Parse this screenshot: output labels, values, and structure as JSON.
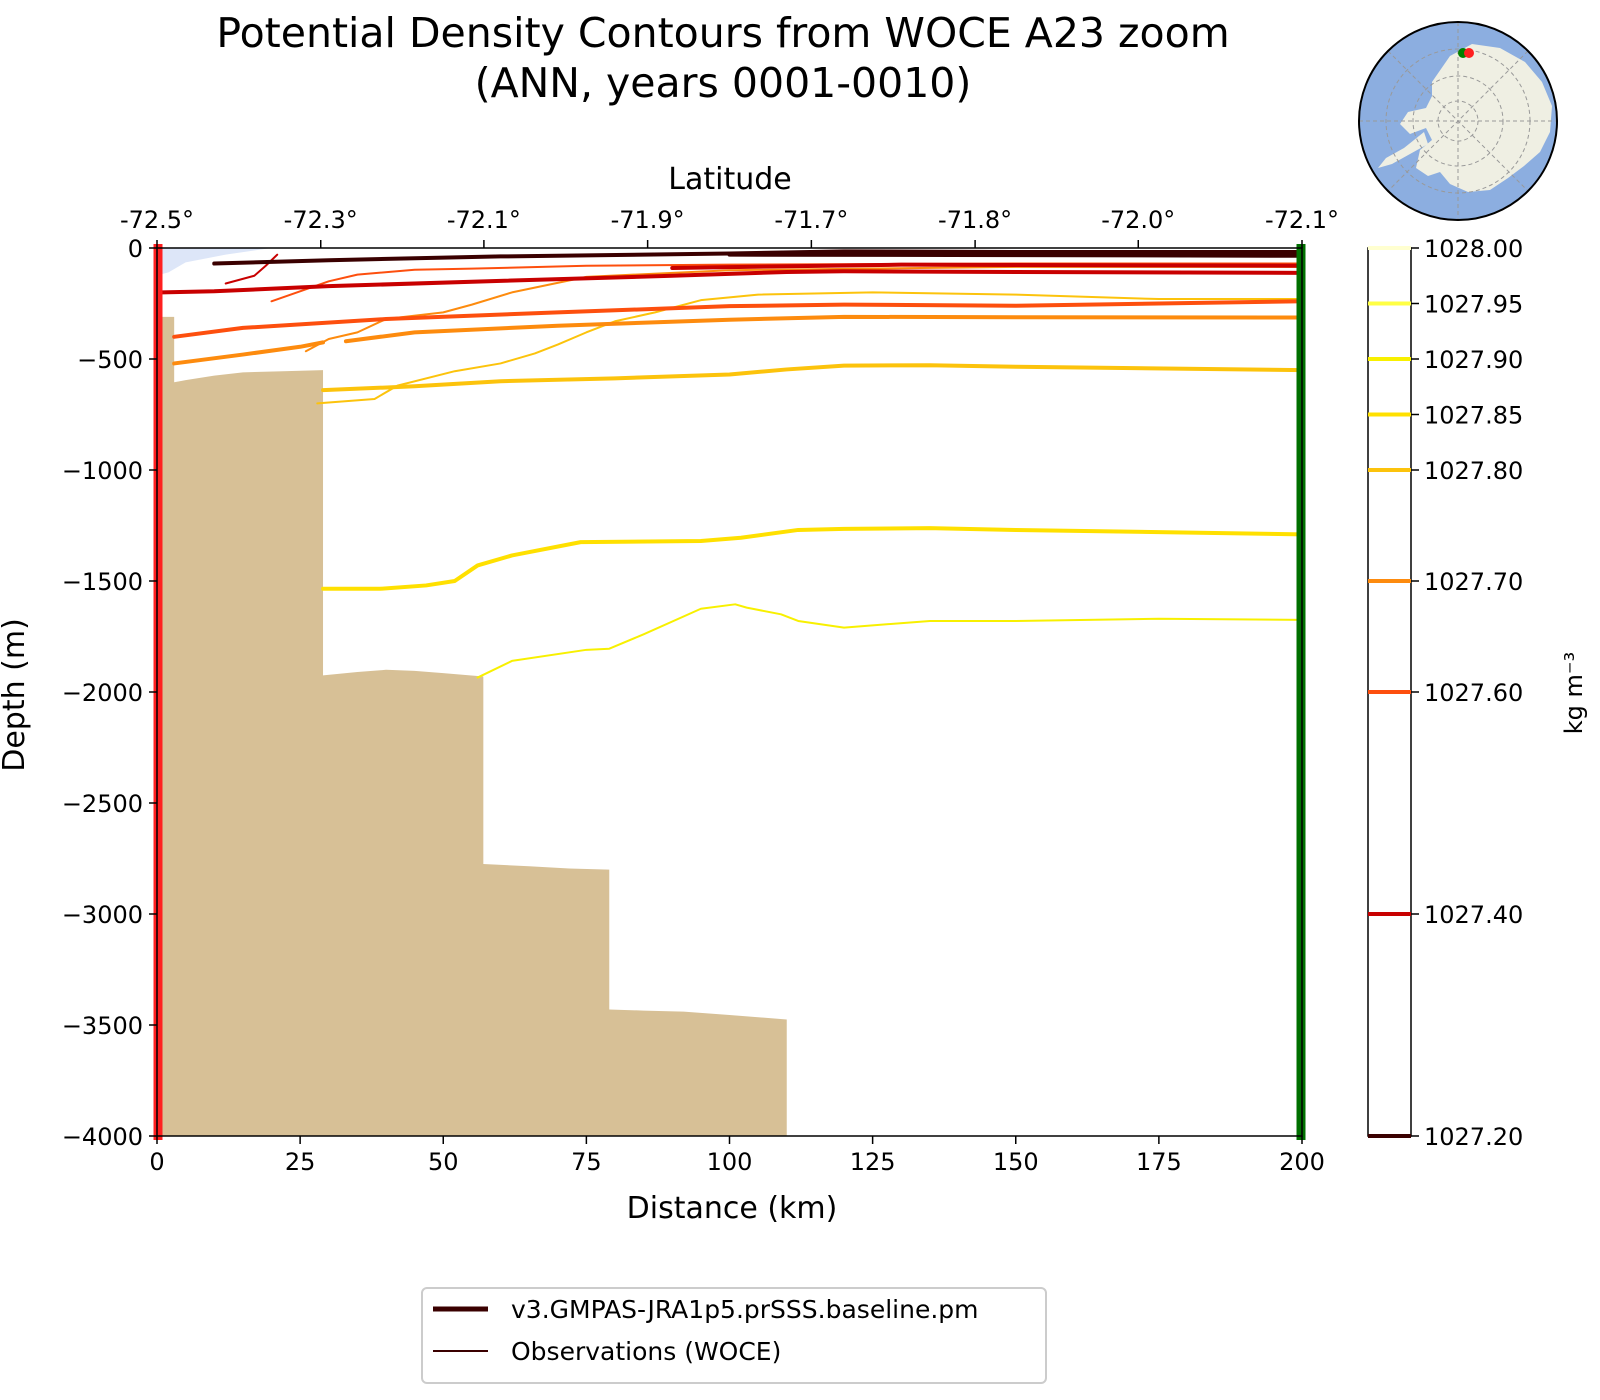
{
  "chart_data": {
    "type": "line",
    "title_line1": "Potential Density Contours from WOCE A23 zoom",
    "title_line2": "(ANN, years 0001-0010)",
    "xlabel": "Distance (km)",
    "ylabel": "Depth (m)",
    "top_xlabel": "Latitude",
    "colorbar_label": "kg m⁻³",
    "xlim": [
      0,
      200
    ],
    "ylim": [
      -4000,
      0
    ],
    "x_ticks": [
      0,
      25,
      50,
      75,
      100,
      125,
      150,
      175,
      200
    ],
    "y_ticks": [
      0,
      -500,
      -1000,
      -1500,
      -2000,
      -2500,
      -3000,
      -3500,
      -4000
    ],
    "y_tick_labels": [
      "0",
      "−500",
      "−1000",
      "−1500",
      "−2000",
      "−2500",
      "−3000",
      "−3500",
      "−4000"
    ],
    "top_ticks": [
      {
        "x": 0,
        "label": "-72.5°"
      },
      {
        "x": 28.6,
        "label": "-72.3°"
      },
      {
        "x": 57.1,
        "label": "-72.1°"
      },
      {
        "x": 85.7,
        "label": "-71.9°"
      },
      {
        "x": 114.3,
        "label": "-71.7°"
      },
      {
        "x": 142.9,
        "label": "-71.8°"
      },
      {
        "x": 171.4,
        "label": "-72.0°"
      },
      {
        "x": 200,
        "label": "-72.1°"
      }
    ],
    "colorbar": {
      "min": 1027.2,
      "max": 1028.0,
      "levels": [
        {
          "value": 1028.0,
          "label": "1028.00",
          "color": "#ffffd0"
        },
        {
          "value": 1027.95,
          "label": "1027.95",
          "color": "#ffff44"
        },
        {
          "value": 1027.9,
          "label": "1027.90",
          "color": "#f8f000"
        },
        {
          "value": 1027.85,
          "label": "1027.85",
          "color": "#ffe000"
        },
        {
          "value": 1027.8,
          "label": "1027.80",
          "color": "#fcc30c"
        },
        {
          "value": 1027.7,
          "label": "1027.70",
          "color": "#fd8b0e"
        },
        {
          "value": 1027.6,
          "label": "1027.60",
          "color": "#fd4f0e"
        },
        {
          "value": 1027.4,
          "label": "1027.40",
          "color": "#c80000"
        },
        {
          "value": 1027.2,
          "label": "1027.20",
          "color": "#3a0000"
        }
      ]
    },
    "bathymetry": [
      [
        0.5,
        -4000
      ],
      [
        0.5,
        -310
      ],
      [
        3,
        -310
      ],
      [
        3,
        -605
      ],
      [
        5,
        -595
      ],
      [
        10,
        -575
      ],
      [
        15,
        -560
      ],
      [
        22,
        -555
      ],
      [
        29,
        -550
      ],
      [
        29,
        -1925
      ],
      [
        35,
        -1910
      ],
      [
        40,
        -1900
      ],
      [
        45,
        -1905
      ],
      [
        50,
        -1915
      ],
      [
        57,
        -1930
      ],
      [
        57,
        -2775
      ],
      [
        65,
        -2785
      ],
      [
        72,
        -2795
      ],
      [
        79,
        -2800
      ],
      [
        79,
        -3430
      ],
      [
        85,
        -3435
      ],
      [
        92,
        -3440
      ],
      [
        100,
        -3455
      ],
      [
        110,
        -3475
      ],
      [
        110,
        -4000
      ]
    ],
    "ice_shelf": [
      [
        0.5,
        0
      ],
      [
        20,
        0
      ],
      [
        12,
        -30
      ],
      [
        5,
        -65
      ],
      [
        2,
        -110
      ],
      [
        0.5,
        -120
      ]
    ],
    "model_series": [
      {
        "level": 1027.2,
        "width": 4,
        "points": [
          [
            10,
            -70
          ],
          [
            30,
            -55
          ],
          [
            60,
            -38
          ],
          [
            100,
            -25
          ],
          [
            120,
            -15
          ],
          [
            150,
            -18
          ],
          [
            200,
            -18
          ]
        ]
      },
      {
        "level": 1027.2,
        "width": 4,
        "points": [
          [
            100,
            -30
          ],
          [
            150,
            -32
          ],
          [
            200,
            -35
          ]
        ]
      },
      {
        "level": 1027.4,
        "width": 4,
        "points": [
          [
            1,
            -200
          ],
          [
            10,
            -195
          ],
          [
            30,
            -172
          ],
          [
            60,
            -148
          ],
          [
            90,
            -125
          ],
          [
            110,
            -108
          ],
          [
            120,
            -105
          ],
          [
            150,
            -108
          ],
          [
            200,
            -112
          ]
        ]
      },
      {
        "level": 1027.4,
        "width": 4,
        "points": [
          [
            90,
            -90
          ],
          [
            130,
            -75
          ],
          [
            200,
            -80
          ]
        ]
      },
      {
        "level": 1027.6,
        "width": 4,
        "points": [
          [
            3,
            -400
          ],
          [
            15,
            -360
          ],
          [
            40,
            -320
          ],
          [
            70,
            -290
          ],
          [
            100,
            -262
          ],
          [
            120,
            -255
          ],
          [
            150,
            -260
          ],
          [
            200,
            -240
          ]
        ]
      },
      {
        "level": 1027.7,
        "width": 4,
        "points": [
          [
            3,
            -520
          ],
          [
            15,
            -480
          ],
          [
            25,
            -445
          ],
          [
            29,
            -425
          ]
        ]
      },
      {
        "level": 1027.7,
        "width": 4,
        "points": [
          [
            33,
            -420
          ],
          [
            45,
            -380
          ],
          [
            70,
            -350
          ],
          [
            100,
            -323
          ],
          [
            120,
            -310
          ],
          [
            150,
            -312
          ],
          [
            200,
            -313
          ]
        ]
      },
      {
        "level": 1027.8,
        "width": 4,
        "points": [
          [
            29,
            -640
          ],
          [
            45,
            -623
          ],
          [
            60,
            -600
          ],
          [
            80,
            -587
          ],
          [
            100,
            -570
          ],
          [
            110,
            -547
          ],
          [
            120,
            -530
          ],
          [
            135,
            -528
          ],
          [
            150,
            -535
          ],
          [
            200,
            -550
          ]
        ]
      },
      {
        "level": 1027.85,
        "width": 4,
        "points": [
          [
            29,
            -1535
          ],
          [
            39,
            -1535
          ],
          [
            47,
            -1520
          ],
          [
            52,
            -1500
          ],
          [
            56,
            -1430
          ],
          [
            62,
            -1385
          ],
          [
            74,
            -1325
          ],
          [
            95,
            -1320
          ],
          [
            102,
            -1305
          ],
          [
            112,
            -1270
          ],
          [
            120,
            -1265
          ],
          [
            135,
            -1262
          ],
          [
            150,
            -1270
          ],
          [
            200,
            -1290
          ]
        ]
      }
    ],
    "obs_series": [
      {
        "level": 1027.4,
        "width": 2,
        "points": [
          [
            12,
            -160
          ],
          [
            17,
            -125
          ],
          [
            19,
            -80
          ],
          [
            21,
            -30
          ]
        ]
      },
      {
        "level": 1027.6,
        "width": 2,
        "points": [
          [
            20,
            -240
          ],
          [
            25,
            -195
          ],
          [
            30,
            -150
          ],
          [
            35,
            -120
          ],
          [
            45,
            -98
          ],
          [
            55,
            -93
          ],
          [
            75,
            -80
          ],
          [
            100,
            -75
          ],
          [
            150,
            -70
          ],
          [
            200,
            -70
          ]
        ]
      },
      {
        "level": 1027.7,
        "width": 2,
        "points": [
          [
            26,
            -465
          ],
          [
            30,
            -410
          ],
          [
            35,
            -380
          ],
          [
            40,
            -320
          ],
          [
            50,
            -290
          ],
          [
            55,
            -255
          ],
          [
            62,
            -200
          ],
          [
            75,
            -130
          ],
          [
            100,
            -100
          ],
          [
            150,
            -85
          ],
          [
            200,
            -85
          ]
        ]
      },
      {
        "level": 1027.8,
        "width": 2,
        "points": [
          [
            28,
            -700
          ],
          [
            38,
            -680
          ],
          [
            42,
            -620
          ],
          [
            52,
            -555
          ],
          [
            60,
            -520
          ],
          [
            66,
            -475
          ],
          [
            70,
            -435
          ],
          [
            75,
            -380
          ],
          [
            80,
            -330
          ],
          [
            87,
            -290
          ],
          [
            95,
            -235
          ],
          [
            105,
            -210
          ],
          [
            125,
            -200
          ],
          [
            150,
            -210
          ],
          [
            175,
            -230
          ],
          [
            200,
            -230
          ]
        ]
      },
      {
        "level": 1027.9,
        "width": 2,
        "points": [
          [
            56,
            -1935
          ],
          [
            62,
            -1860
          ],
          [
            75,
            -1810
          ],
          [
            79,
            -1805
          ],
          [
            85,
            -1740
          ],
          [
            95,
            -1625
          ],
          [
            101,
            -1605
          ],
          [
            103,
            -1620
          ],
          [
            109,
            -1650
          ],
          [
            112,
            -1680
          ],
          [
            120,
            -1710
          ],
          [
            135,
            -1680
          ],
          [
            150,
            -1680
          ],
          [
            175,
            -1670
          ],
          [
            200,
            -1675
          ]
        ]
      }
    ],
    "legend": [
      {
        "label": "v3.GMPAS-JRA1p5.prSSS.baseline.pm",
        "style": "model",
        "color": "#3a0000"
      },
      {
        "label": "Observations (WOCE)",
        "style": "obs",
        "color": "#3a0000"
      }
    ],
    "inset_map": {
      "description_colors": {
        "ocean": "#8caee0",
        "land": "#efefe3"
      },
      "markers": [
        {
          "color": "#008000"
        },
        {
          "color": "#ff2020"
        }
      ]
    },
    "section_start_color": "#ff2020",
    "section_end_color": "#007000"
  }
}
